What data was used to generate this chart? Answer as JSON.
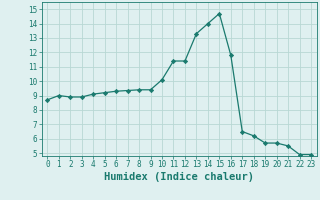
{
  "x": [
    0,
    1,
    2,
    3,
    4,
    5,
    6,
    7,
    8,
    9,
    10,
    11,
    12,
    13,
    14,
    15,
    16,
    17,
    18,
    19,
    20,
    21,
    22,
    23
  ],
  "y": [
    8.7,
    9.0,
    8.9,
    8.9,
    9.1,
    9.2,
    9.3,
    9.35,
    9.4,
    9.4,
    10.1,
    11.4,
    11.4,
    13.3,
    14.0,
    14.7,
    11.8,
    6.5,
    6.2,
    5.7,
    5.7,
    5.5,
    4.9,
    4.9
  ],
  "line_color": "#1a7a6e",
  "marker": "D",
  "marker_size": 2.2,
  "bg_color": "#dff0f0",
  "grid_color": "#b8d8d4",
  "xlabel": "Humidex (Indice chaleur)",
  "xlim": [
    -0.5,
    23.5
  ],
  "ylim": [
    4.8,
    15.5
  ],
  "yticks": [
    5,
    6,
    7,
    8,
    9,
    10,
    11,
    12,
    13,
    14,
    15
  ],
  "xticks": [
    0,
    1,
    2,
    3,
    4,
    5,
    6,
    7,
    8,
    9,
    10,
    11,
    12,
    13,
    14,
    15,
    16,
    17,
    18,
    19,
    20,
    21,
    22,
    23
  ],
  "tick_fontsize": 5.5,
  "label_fontsize": 7.5
}
